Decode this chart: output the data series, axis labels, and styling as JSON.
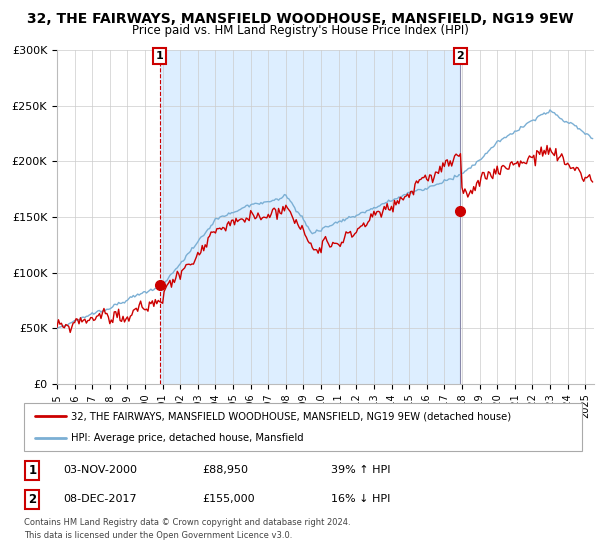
{
  "title": "32, THE FAIRWAYS, MANSFIELD WOODHOUSE, MANSFIELD, NG19 9EW",
  "subtitle": "Price paid vs. HM Land Registry's House Price Index (HPI)",
  "sale1_date": "03-NOV-2000",
  "sale1_price": 88950,
  "sale1_label": "1",
  "sale1_hpi": "39% ↑ HPI",
  "sale2_date": "08-DEC-2017",
  "sale2_price": 155000,
  "sale2_label": "2",
  "sale2_hpi": "16% ↓ HPI",
  "legend1": "32, THE FAIRWAYS, MANSFIELD WOODHOUSE, MANSFIELD, NG19 9EW (detached house)",
  "legend2": "HPI: Average price, detached house, Mansfield",
  "footer1": "Contains HM Land Registry data © Crown copyright and database right 2024.",
  "footer2": "This data is licensed under the Open Government Licence v3.0.",
  "red_color": "#cc0000",
  "blue_color": "#7bafd4",
  "shade_color": "#ddeeff",
  "background_color": "#ffffff",
  "grid_color": "#cccccc",
  "ylim": [
    0,
    300000
  ],
  "xlim_start": 1995.0,
  "xlim_end": 2025.5,
  "title_fontsize": 10,
  "subtitle_fontsize": 8.5,
  "ax_bg": "#ffffff"
}
